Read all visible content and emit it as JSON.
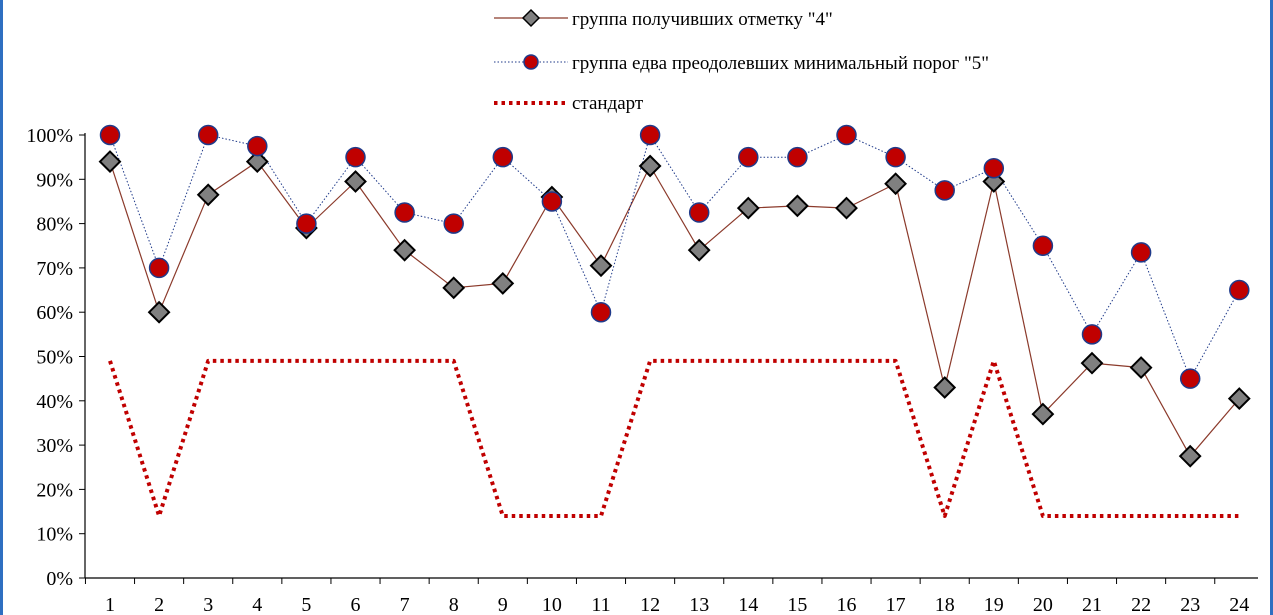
{
  "chart_data": {
    "type": "line",
    "title": "",
    "xlabel": "",
    "ylabel": "",
    "categories": [
      "1",
      "2",
      "3",
      "4",
      "5",
      "6",
      "7",
      "8",
      "9",
      "10",
      "11",
      "12",
      "13",
      "14",
      "15",
      "16",
      "17",
      "18",
      "19",
      "20",
      "21",
      "22",
      "23",
      "24"
    ],
    "ylim": [
      0,
      100
    ],
    "y_ticks": [
      0,
      10,
      20,
      30,
      40,
      50,
      60,
      70,
      80,
      90,
      100
    ],
    "y_tick_labels": [
      "0%",
      "10%",
      "20%",
      "30%",
      "40%",
      "50%",
      "60%",
      "70%",
      "80%",
      "90%",
      "100%"
    ],
    "grid": false,
    "legend_position": "top",
    "series": [
      {
        "name": "группа получивших отметку \"4\"",
        "values": [
          94,
          60,
          86.5,
          94,
          79,
          89.5,
          74,
          65.5,
          66.5,
          86,
          70.5,
          93,
          74,
          83.5,
          84,
          83.5,
          89,
          43,
          89.5,
          37,
          48.5,
          47.5,
          27.5,
          40.5
        ],
        "color": "#8b3a2b",
        "marker": "diamond",
        "marker_color": "#808080"
      },
      {
        "name": "группа едва преодолевших минимальный порог \"5\"",
        "values": [
          100,
          70,
          100,
          97.5,
          80,
          95,
          82.5,
          80,
          95,
          85,
          60,
          100,
          82.5,
          95,
          95,
          100,
          95,
          87.5,
          92.5,
          75,
          55,
          73.5,
          45,
          65
        ],
        "color": "#1f3a8a",
        "marker": "circle",
        "marker_color": "#c00000"
      },
      {
        "name": "стандарт",
        "values": [
          49,
          14,
          49,
          49,
          49,
          49,
          49,
          49,
          14,
          14,
          14,
          49,
          49,
          49,
          49,
          49,
          49,
          14,
          49,
          14,
          14,
          14,
          14,
          14
        ],
        "color": "#c00000",
        "marker": "none"
      }
    ]
  }
}
